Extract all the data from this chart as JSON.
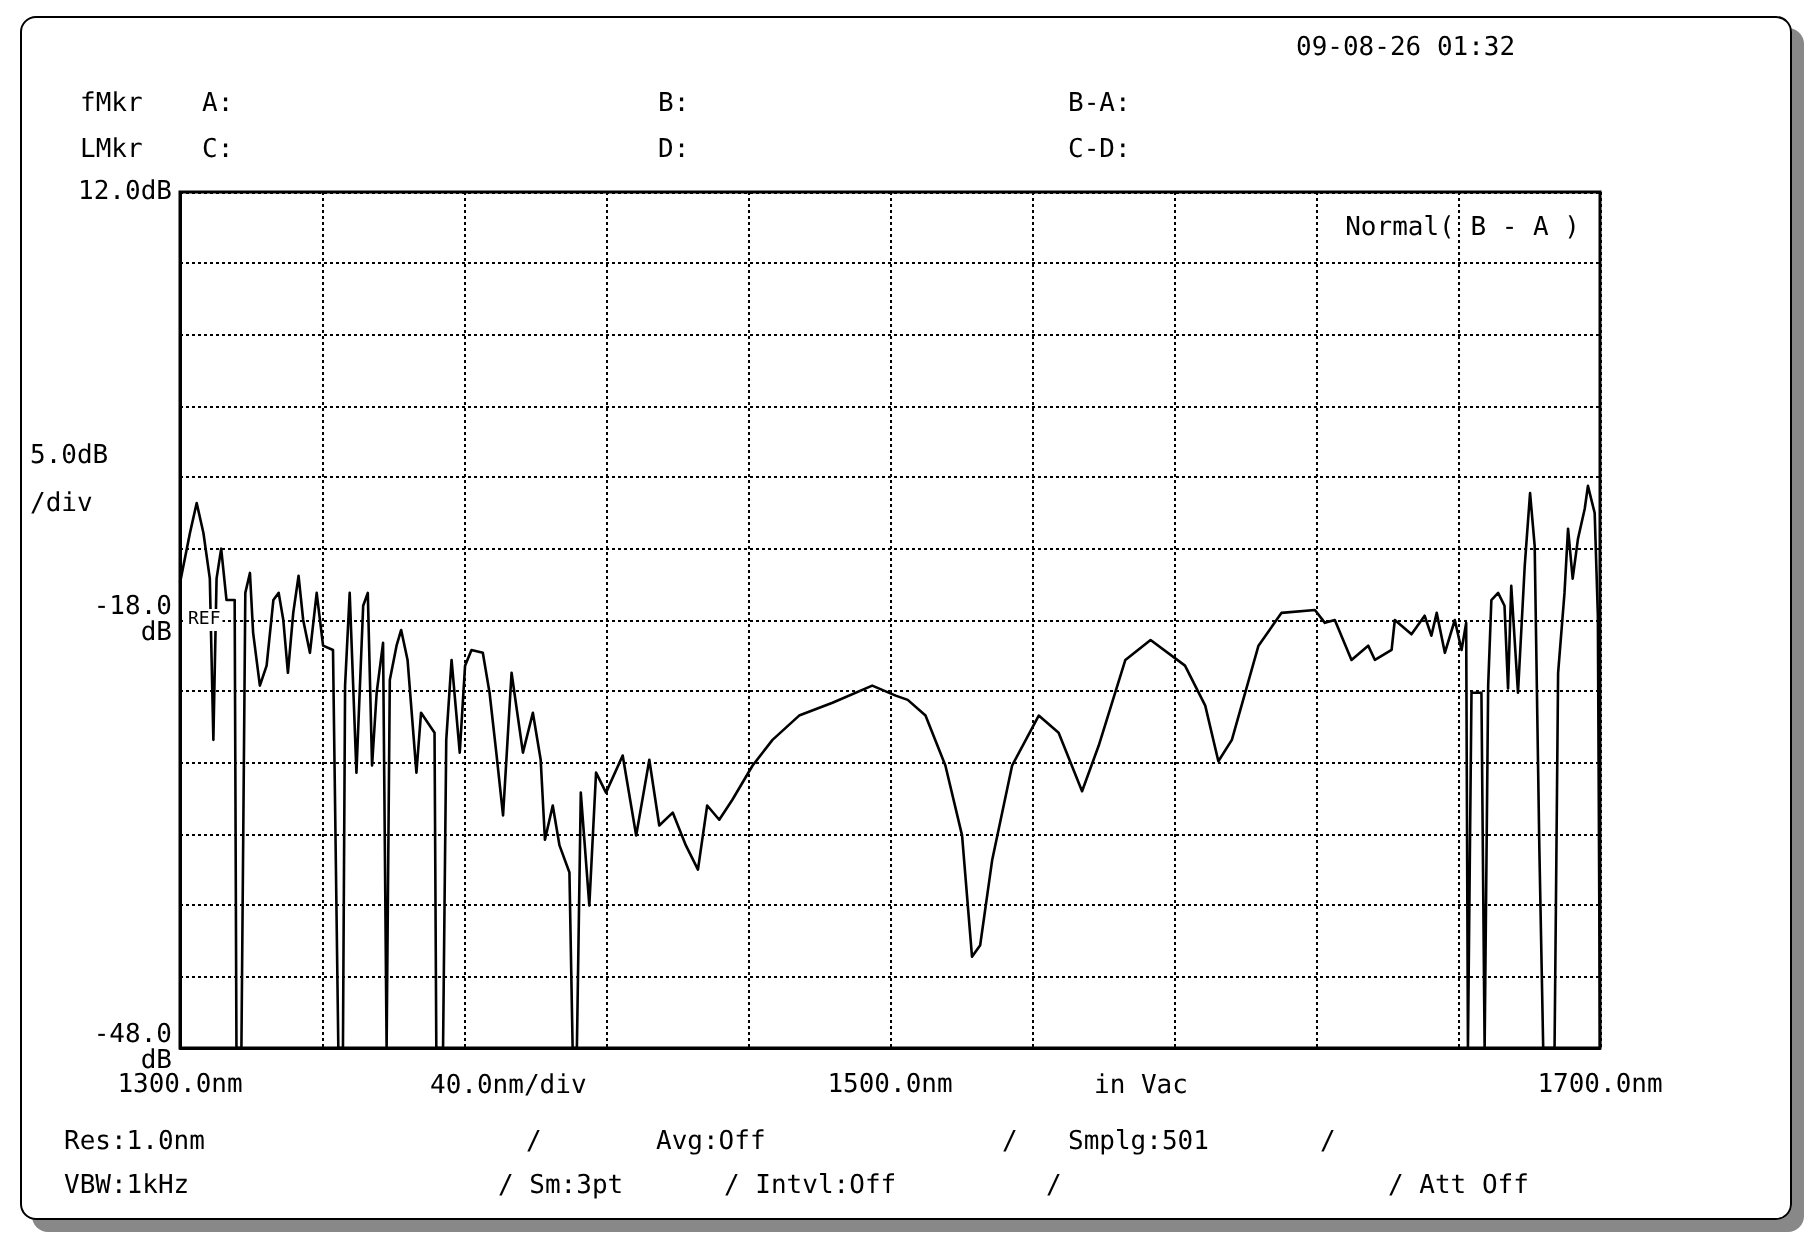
{
  "chart_data": {
    "type": "line",
    "x": [
      1300,
      1302.8,
      1304.7,
      1306.6,
      1308.4,
      1309.4,
      1310.3,
      1311.6,
      1313.1,
      1315.4,
      1315.9,
      1317.3,
      1318.4,
      1319.7,
      1320.6,
      1322.5,
      1324.4,
      1326.3,
      1327.8,
      1329.1,
      1330.4,
      1331.9,
      1333.4,
      1334.7,
      1336.6,
      1338.5,
      1340.3,
      1343.1,
      1344.6,
      1345.9,
      1346.5,
      1347.8,
      1349.7,
      1351.6,
      1352.9,
      1354.1,
      1355.4,
      1357.2,
      1358.2,
      1359.1,
      1361,
      1362.3,
      1364.1,
      1366.6,
      1367.9,
      1371.7,
      1372.2,
      1374.1,
      1375,
      1376.5,
      1378.8,
      1380.3,
      1382.1,
      1385.3,
      1387.2,
      1389.1,
      1391,
      1393.4,
      1396.6,
      1399.4,
      1401.6,
      1402.8,
      1405,
      1406.9,
      1409.7,
      1410.6,
      1411.8,
      1412.9,
      1415.3,
      1417.2,
      1420,
      1424.7,
      1428.5,
      1432.2,
      1435,
      1438.8,
      1442.5,
      1445.9,
      1448.5,
      1451.9,
      1455.6,
      1461.3,
      1466.9,
      1474.4,
      1483.8,
      1495,
      1501.6,
      1505,
      1510,
      1515.6,
      1520.3,
      1523.1,
      1525.4,
      1528.8,
      1534.4,
      1541.9,
      1547.5,
      1554.1,
      1558.8,
      1566.3,
      1573.4,
      1583.1,
      1588.8,
      1592.5,
      1596.3,
      1603.8,
      1610.3,
      1619.7,
      1622.5,
      1625.3,
      1630,
      1634.7,
      1636.6,
      1641.3,
      1642.2,
      1646.9,
      1650.6,
      1652.5,
      1654,
      1656.3,
      1659.1,
      1661,
      1662.3,
      1662.8,
      1663.8,
      1666.6,
      1667.5,
      1668.5,
      1669.4,
      1671.3,
      1673.1,
      1674.1,
      1675,
      1676.9,
      1678.8,
      1680.3,
      1681.6,
      1682.9,
      1684,
      1687.2,
      1688.2,
      1690,
      1691,
      1692.3,
      1693.8,
      1695.7,
      1696.6,
      1698.5,
      1699.4,
      1700
    ],
    "series": [
      {
        "color": "#000000",
        "values": [
          -15.4,
          -11.9,
          -9.8,
          -11.9,
          -15.1,
          -26.4,
          -15.1,
          -13,
          -16.6,
          -16.6,
          -48,
          -48,
          -16.1,
          -14.7,
          -18.9,
          -22.6,
          -21.2,
          -16.6,
          -16.1,
          -18,
          -21.7,
          -17.5,
          -14.9,
          -18,
          -20.3,
          -16.1,
          -19.8,
          -20.1,
          -48,
          -48,
          -22.6,
          -16.1,
          -28.7,
          -17,
          -16.1,
          -28.2,
          -23.1,
          -19.6,
          -48,
          -22.2,
          -19.8,
          -18.7,
          -20.8,
          -28.7,
          -24.5,
          -25.9,
          -48,
          -48,
          -26.4,
          -20.8,
          -27.3,
          -21.2,
          -20.1,
          -20.3,
          -23.1,
          -27.3,
          -31.7,
          -21.7,
          -27.3,
          -24.5,
          -27.8,
          -33.4,
          -31,
          -33.8,
          -35.7,
          -48,
          -48,
          -30.1,
          -38,
          -28.7,
          -30.1,
          -27.5,
          -33.1,
          -27.8,
          -32.4,
          -31.5,
          -33.8,
          -35.5,
          -31,
          -32,
          -30.6,
          -28.2,
          -26.4,
          -24.7,
          -23.8,
          -22.6,
          -23.3,
          -23.6,
          -24.7,
          -28.2,
          -33.1,
          -41.6,
          -40.8,
          -34.8,
          -28.2,
          -24.7,
          -25.9,
          -30,
          -26.8,
          -20.8,
          -19.4,
          -21.2,
          -24,
          -27.9,
          -26.4,
          -19.8,
          -17.5,
          -17.3,
          -18.2,
          -18,
          -20.8,
          -19.8,
          -20.8,
          -20.1,
          -18,
          -19,
          -17.7,
          -19.1,
          -17.5,
          -20.3,
          -18,
          -20.1,
          -18.2,
          -48,
          -23.1,
          -23.1,
          -48,
          -22.6,
          -16.6,
          -16.1,
          -17,
          -22.8,
          -15.6,
          -23.1,
          -14.2,
          -9.1,
          -12.8,
          -33.8,
          -48,
          -48,
          -21.7,
          -16.1,
          -11.6,
          -15.1,
          -12.3,
          -10.2,
          -8.6,
          -10.5,
          -17.7,
          -48
        ]
      }
    ],
    "xlim": [
      1300,
      1700
    ],
    "xticks": [
      {
        "value": 1300,
        "label": "1300.0nm"
      },
      {
        "value": 1340,
        "label": null
      },
      {
        "value": 1380,
        "label": null
      },
      {
        "value": 1420,
        "label": null
      },
      {
        "value": 1460,
        "label": null
      },
      {
        "value": 1500,
        "label": "1500.0nm"
      },
      {
        "value": 1540,
        "label": null
      },
      {
        "value": 1580,
        "label": null
      },
      {
        "value": 1620,
        "label": null
      },
      {
        "value": 1660,
        "label": null
      },
      {
        "value": 1700,
        "label": "1700.0nm"
      }
    ],
    "ylim": [
      -48,
      12
    ],
    "yticks": [
      {
        "value": -48,
        "label": "-48.0\ndB"
      },
      {
        "value": -43,
        "label": null
      },
      {
        "value": -38,
        "label": null
      },
      {
        "value": -33,
        "label": null
      },
      {
        "value": -28,
        "label": null
      },
      {
        "value": -23,
        "label": null
      },
      {
        "value": -18,
        "label": "-18.0\ndB"
      },
      {
        "value": -13,
        "label": null
      },
      {
        "value": -8,
        "label": null
      },
      {
        "value": -3,
        "label": null
      },
      {
        "value": 2,
        "label": null
      },
      {
        "value": 7,
        "label": null
      },
      {
        "value": 12,
        "label": "12.0dB"
      }
    ],
    "grid": true,
    "marker": "none",
    "xlabel": "40.0nm/div",
    "annotations": [
      "09-08-26 01:32",
      "fMkr",
      "A:",
      "B:",
      "B-A:",
      "LMkr",
      "C:",
      "D:",
      "C-D:",
      "Normal( B - A )",
      "5.0dB",
      "/div",
      "REF",
      "in Vac",
      "Res:1.0nm",
      "/",
      "Avg:Off",
      "/",
      "Smplg:501",
      "/",
      "VBW:1kHz",
      "/ Sm:3pt",
      "/ Intvl:Off",
      "/",
      "/ Att Off"
    ]
  }
}
